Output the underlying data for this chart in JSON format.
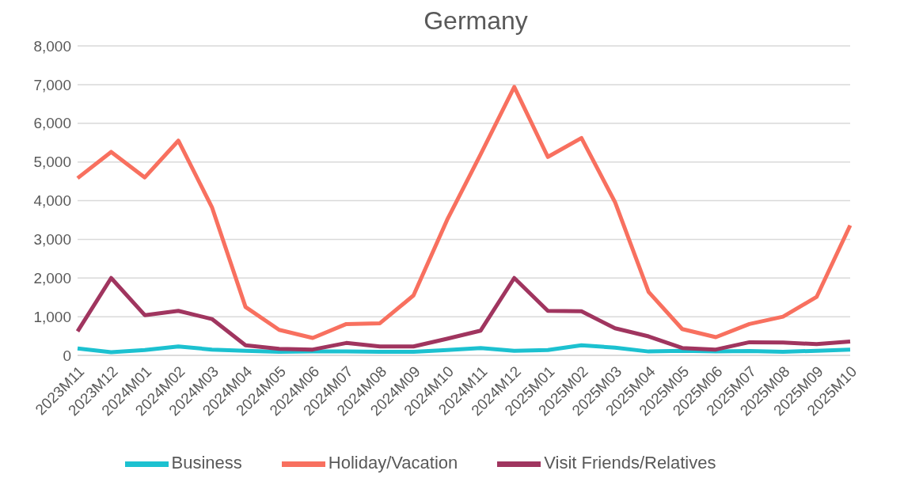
{
  "chart_data": {
    "type": "line",
    "title": "Germany",
    "categories": [
      "2023M11",
      "2023M12",
      "2024M01",
      "2024M02",
      "2024M03",
      "2024M04",
      "2024M05",
      "2024M06",
      "2024M07",
      "2024M08",
      "2024M09",
      "2024M10",
      "2024M11",
      "2024M12",
      "2025M01",
      "2025M02",
      "2025M03",
      "2025M04",
      "2025M05",
      "2025M06",
      "2025M07",
      "2025M08",
      "2025M09",
      "2025M10"
    ],
    "series": [
      {
        "name": "Business",
        "color": "#1cc1d0",
        "values": [
          180,
          80,
          140,
          230,
          150,
          120,
          90,
          100,
          100,
          90,
          90,
          140,
          190,
          120,
          140,
          260,
          200,
          100,
          120,
          100,
          110,
          90,
          120,
          150
        ]
      },
      {
        "name": "Holiday/Vacation",
        "color": "#f8705f",
        "values": [
          4580,
          5260,
          4600,
          5550,
          3830,
          1250,
          660,
          450,
          810,
          830,
          1550,
          3500,
          5200,
          6940,
          5130,
          5620,
          3960,
          1640,
          680,
          470,
          810,
          1000,
          1510,
          3360
        ]
      },
      {
        "name": "Visit Friends/Relatives",
        "color": "#a0355f",
        "values": [
          620,
          2000,
          1040,
          1150,
          940,
          260,
          170,
          150,
          320,
          230,
          230,
          430,
          640,
          2000,
          1150,
          1140,
          700,
          490,
          190,
          150,
          340,
          330,
          290,
          360
        ]
      }
    ],
    "ylim": [
      0,
      8000
    ],
    "yticks": [
      0,
      {
        "value": 1000,
        "label": "1,000"
      },
      {
        "value": 2000,
        "label": "2,000"
      },
      {
        "value": 3000,
        "label": "3,000"
      },
      {
        "value": 4000,
        "label": "4,000"
      },
      {
        "value": 5000,
        "label": "5,000"
      },
      {
        "value": 6000,
        "label": "6,000"
      },
      {
        "value": 7000,
        "label": "7,000"
      },
      {
        "value": 8000,
        "label": "8,000"
      }
    ],
    "grid": "y",
    "legend": "bottom",
    "marker": "none",
    "line_style": "solid"
  }
}
